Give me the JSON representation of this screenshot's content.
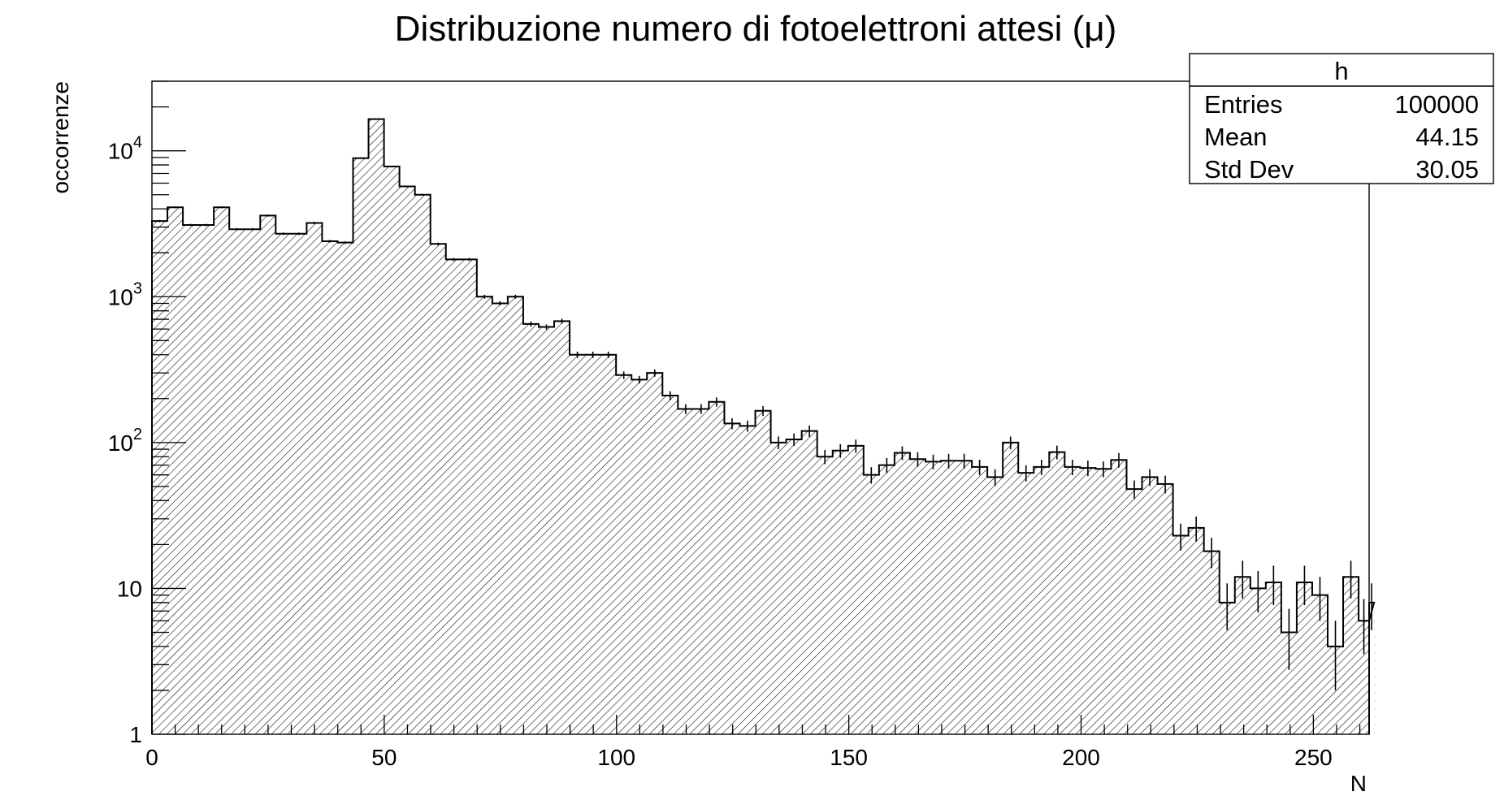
{
  "chart_data": {
    "type": "histogram",
    "title": "Distribuzione numero di fotoelettroni attesi (μ)",
    "xlabel": "N",
    "ylabel": "occorrenze",
    "xlim": [
      0,
      262
    ],
    "ylim": [
      1,
      30000
    ],
    "y_scale": "log",
    "bin_width": 3.33,
    "x_ticks": [
      {
        "value": 0,
        "label": "0"
      },
      {
        "value": 50,
        "label": "50"
      },
      {
        "value": 100,
        "label": "100"
      },
      {
        "value": 150,
        "label": "150"
      },
      {
        "value": 200,
        "label": "200"
      },
      {
        "value": 250,
        "label": "250"
      }
    ],
    "y_ticks": [
      {
        "value": 1,
        "base": "1",
        "exp": ""
      },
      {
        "value": 10,
        "base": "10",
        "exp": ""
      },
      {
        "value": 100,
        "base": "10",
        "exp": "2"
      },
      {
        "value": 1000,
        "base": "10",
        "exp": "3"
      },
      {
        "value": 10000,
        "base": "10",
        "exp": "4"
      }
    ],
    "values": [
      3300,
      4100,
      3100,
      3100,
      4100,
      2900,
      2900,
      3600,
      2700,
      2700,
      3200,
      2400,
      2350,
      8900,
      16500,
      7800,
      5700,
      5000,
      2300,
      1800,
      1800,
      1000,
      900,
      1000,
      650,
      620,
      680,
      400,
      400,
      400,
      290,
      270,
      300,
      210,
      170,
      170,
      190,
      135,
      130,
      165,
      100,
      105,
      120,
      80,
      88,
      95,
      60,
      70,
      85,
      77,
      74,
      75,
      75,
      68,
      58,
      100,
      62,
      68,
      86,
      68,
      67,
      66,
      76,
      48,
      58,
      52,
      23,
      26,
      18,
      8,
      12,
      10,
      11,
      5,
      11,
      9,
      4,
      12,
      6,
      8
    ],
    "fill": "hatched",
    "line_color": "#000000",
    "stats": {
      "title": "h",
      "rows": [
        {
          "label": "Entries",
          "value": "100000"
        },
        {
          "label": "Mean",
          "value": "44.15"
        },
        {
          "label": "Std Dev",
          "value": "30.05"
        }
      ]
    }
  }
}
